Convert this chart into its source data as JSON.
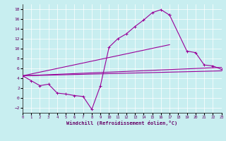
{
  "background_color": "#c8eef0",
  "line_color": "#990099",
  "xlim": [
    0,
    23
  ],
  "ylim": [
    -3,
    19
  ],
  "xticks": [
    0,
    1,
    2,
    3,
    4,
    5,
    6,
    7,
    8,
    9,
    10,
    11,
    12,
    13,
    14,
    15,
    16,
    17,
    18,
    19,
    20,
    21,
    22,
    23
  ],
  "yticks": [
    -2,
    0,
    2,
    4,
    6,
    8,
    10,
    12,
    14,
    16,
    18
  ],
  "xlabel": "Windchill (Refroidissement éolien,°C)",
  "c1x": [
    0,
    1,
    2,
    3,
    4,
    5,
    6,
    7,
    8,
    9,
    10,
    11,
    12,
    13,
    14,
    15,
    16,
    17
  ],
  "c1y": [
    4.5,
    3.5,
    2.5,
    2.8,
    1.0,
    0.8,
    0.5,
    0.3,
    -2.3,
    2.5,
    10.3,
    12.0,
    13.0,
    14.5,
    15.8,
    17.3,
    17.9,
    16.8
  ],
  "c2x": [
    17,
    19,
    20,
    21,
    22,
    23
  ],
  "c2y": [
    16.8,
    9.5,
    9.2,
    6.7,
    6.5,
    5.8
  ],
  "c3x": [
    0,
    17
  ],
  "c3y": [
    4.5,
    10.8
  ],
  "c4x": [
    0,
    23
  ],
  "c4y": [
    4.5,
    6.2
  ],
  "c5x": [
    0,
    23
  ],
  "c5y": [
    4.5,
    5.5
  ]
}
